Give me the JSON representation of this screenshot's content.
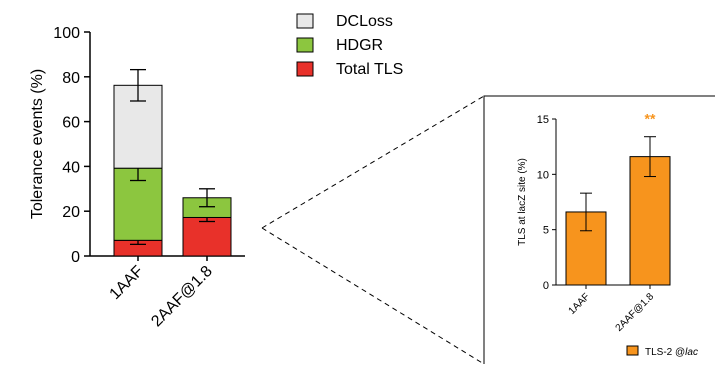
{
  "chart_data": [
    {
      "type": "bar",
      "stacked": true,
      "categories": [
        "1AAF",
        "2AAF@1.8"
      ],
      "ylabel": "Tolerance events (%)",
      "ylim": [
        0,
        100
      ],
      "yticks": [
        0,
        20,
        40,
        60,
        80,
        100
      ],
      "legend_position": "top-right",
      "grid": false,
      "series": [
        {
          "name": "Total TLS",
          "color": "#e8312a",
          "values": [
            7,
            17.2
          ],
          "error": [
            1.8,
            1.8
          ]
        },
        {
          "name": "HDGR",
          "color": "#8cc63f",
          "values": [
            32.2,
            8.8
          ],
          "error": [
            5.5,
            4.0
          ]
        },
        {
          "name": "DCLoss",
          "color": "#e8e8e8",
          "values": [
            37,
            0
          ],
          "error": [
            7,
            0
          ]
        }
      ]
    },
    {
      "type": "bar",
      "categories": [
        "1AAF",
        "2AAF@1.8"
      ],
      "ylabel": "TLS at lacZ site (%)",
      "ylim": [
        0,
        15
      ],
      "yticks": [
        0,
        5,
        10,
        15
      ],
      "grid": false,
      "series": [
        {
          "name": "TLS-2 @lac",
          "color": "#f7941d",
          "values": [
            6.6,
            11.6
          ],
          "error": [
            1.7,
            1.8
          ]
        }
      ],
      "annotations": [
        {
          "text": "**",
          "category": "2AAF@1.8",
          "color": "#f7941d"
        }
      ]
    }
  ]
}
